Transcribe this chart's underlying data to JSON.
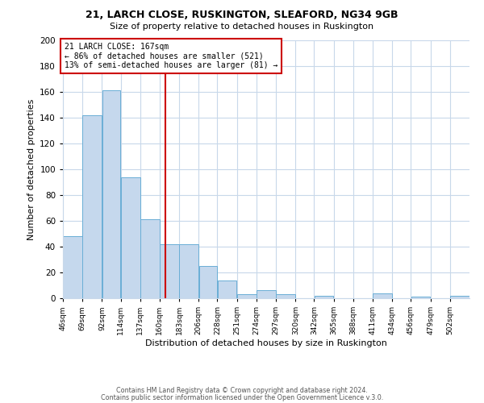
{
  "title1": "21, LARCH CLOSE, RUSKINGTON, SLEAFORD, NG34 9GB",
  "title2": "Size of property relative to detached houses in Ruskington",
  "xlabel": "Distribution of detached houses by size in Ruskington",
  "ylabel": "Number of detached properties",
  "bar_edges": [
    46,
    69,
    92,
    114,
    137,
    160,
    183,
    206,
    228,
    251,
    274,
    297,
    320,
    342,
    365,
    388,
    411,
    434,
    456,
    479,
    502
  ],
  "bar_heights": [
    48,
    142,
    161,
    94,
    61,
    42,
    42,
    25,
    14,
    3,
    6,
    3,
    0,
    2,
    0,
    0,
    4,
    0,
    1,
    0,
    2
  ],
  "bar_color": "#c5d8ed",
  "bar_edgecolor": "#6aaed6",
  "vline_x": 167,
  "vline_color": "#cc0000",
  "annotation_title": "21 LARCH CLOSE: 167sqm",
  "annotation_line1": "← 86% of detached houses are smaller (521)",
  "annotation_line2": "13% of semi-detached houses are larger (81) →",
  "annotation_box_color": "#cc0000",
  "ylim": [
    0,
    200
  ],
  "yticks": [
    0,
    20,
    40,
    60,
    80,
    100,
    120,
    140,
    160,
    180,
    200
  ],
  "tick_labels": [
    "46sqm",
    "69sqm",
    "92sqm",
    "114sqm",
    "137sqm",
    "160sqm",
    "183sqm",
    "206sqm",
    "228sqm",
    "251sqm",
    "274sqm",
    "297sqm",
    "320sqm",
    "342sqm",
    "365sqm",
    "388sqm",
    "411sqm",
    "434sqm",
    "456sqm",
    "479sqm",
    "502sqm"
  ],
  "footer1": "Contains HM Land Registry data © Crown copyright and database right 2024.",
  "footer2": "Contains public sector information licensed under the Open Government Licence v.3.0.",
  "bg_color": "#ffffff",
  "grid_color": "#c8d8ea"
}
